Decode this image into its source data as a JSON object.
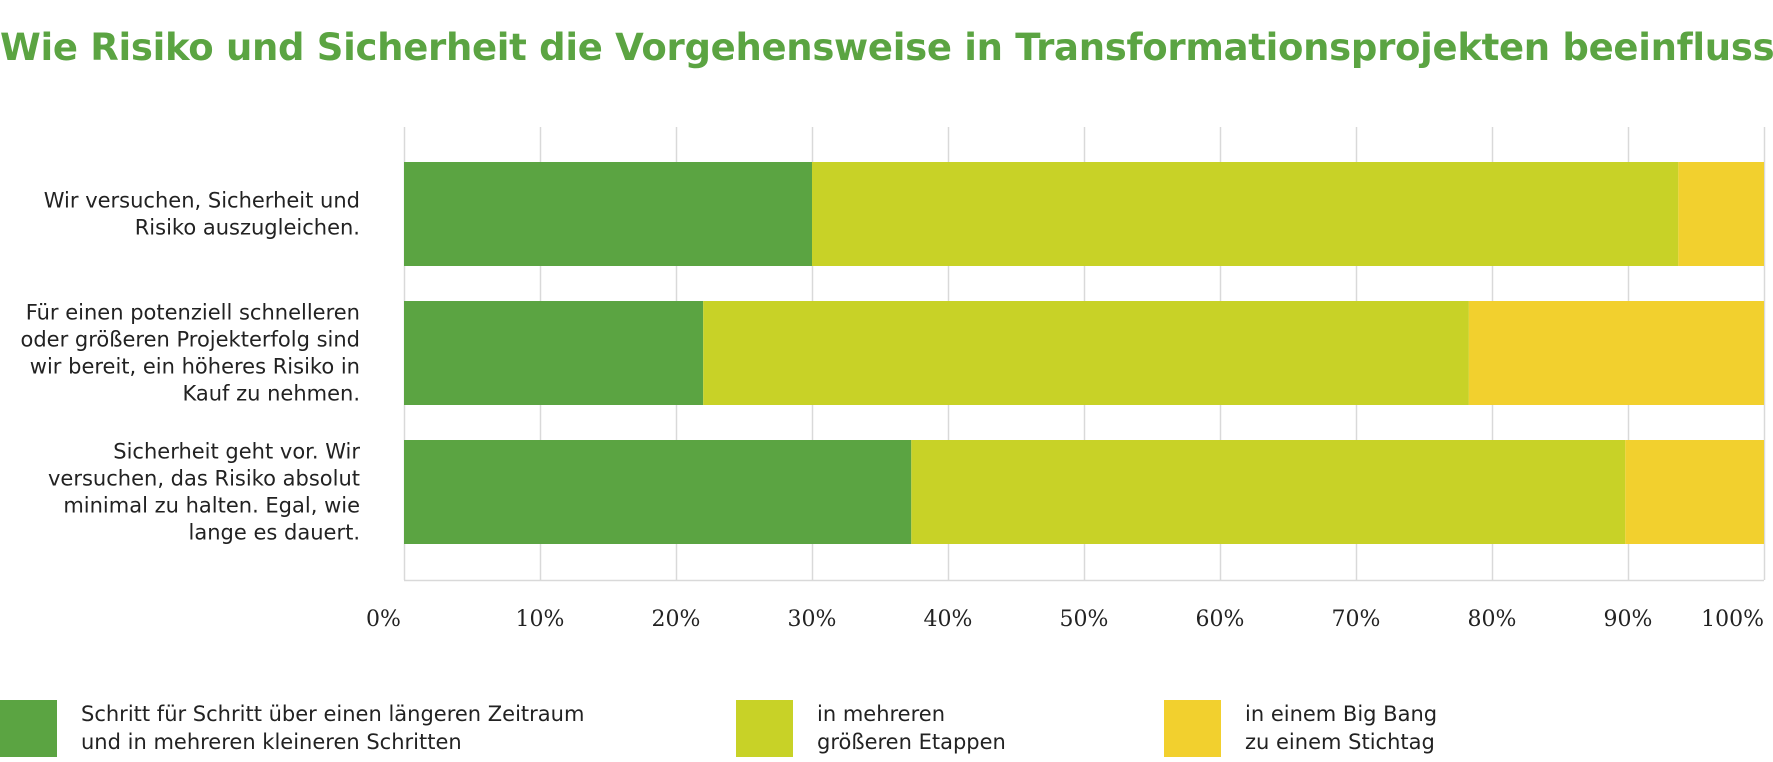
{
  "title": "Wie Risiko und Sicherheit die Vorgehensweise in Transformationsprojekten beeinflusst",
  "colors": {
    "series1": "#5ba442",
    "series2": "#c8d227",
    "series3": "#f2d02e",
    "grid": "#d9d9d9",
    "title": "#5ba442"
  },
  "legend": [
    {
      "line1": "Schritt für Schritt über einen längeren Zeitraum",
      "line2": "und in mehreren kleineren Schritten"
    },
    {
      "line1": "in mehreren",
      "line2": "größeren Etappen"
    },
    {
      "line1": "in einem Big Bang",
      "line2": "zu einem Stichtag"
    }
  ],
  "chart_data": {
    "type": "bar",
    "orientation": "horizontal",
    "stacked": true,
    "title": "Wie Risiko und Sicherheit die Vorgehensweise in Transformationsprojekten beeinflusst",
    "categories": [
      [
        "Wir versuchen, Sicherheit und",
        "Risiko auszugleichen."
      ],
      [
        "Für einen potenziell schnelleren",
        "oder größeren Projekterfolg sind",
        "wir bereit, ein höheres Risiko in",
        "Kauf zu nehmen."
      ],
      [
        "Sicherheit geht vor. Wir",
        "versuchen, das Risiko absolut",
        "minimal zu halten. Egal, wie",
        "lange es dauert."
      ]
    ],
    "series": [
      {
        "name": "Schritt für Schritt über einen längeren Zeitraum und in mehreren kleineren Schritten",
        "values": [
          30,
          22,
          37.3
        ]
      },
      {
        "name": "in mehreren größeren Etappen",
        "values": [
          63.7,
          56.3,
          52.5
        ]
      },
      {
        "name": "in einem Big Bang zu einem Stichtag",
        "values": [
          6.3,
          21.7,
          10.2
        ]
      }
    ],
    "xlim": [
      0,
      100
    ],
    "xticks": [
      "0%",
      "10%",
      "20%",
      "30%",
      "40%",
      "50%",
      "60%",
      "70%",
      "80%",
      "90%",
      "100%"
    ],
    "grid": true,
    "legend_position": "bottom"
  }
}
